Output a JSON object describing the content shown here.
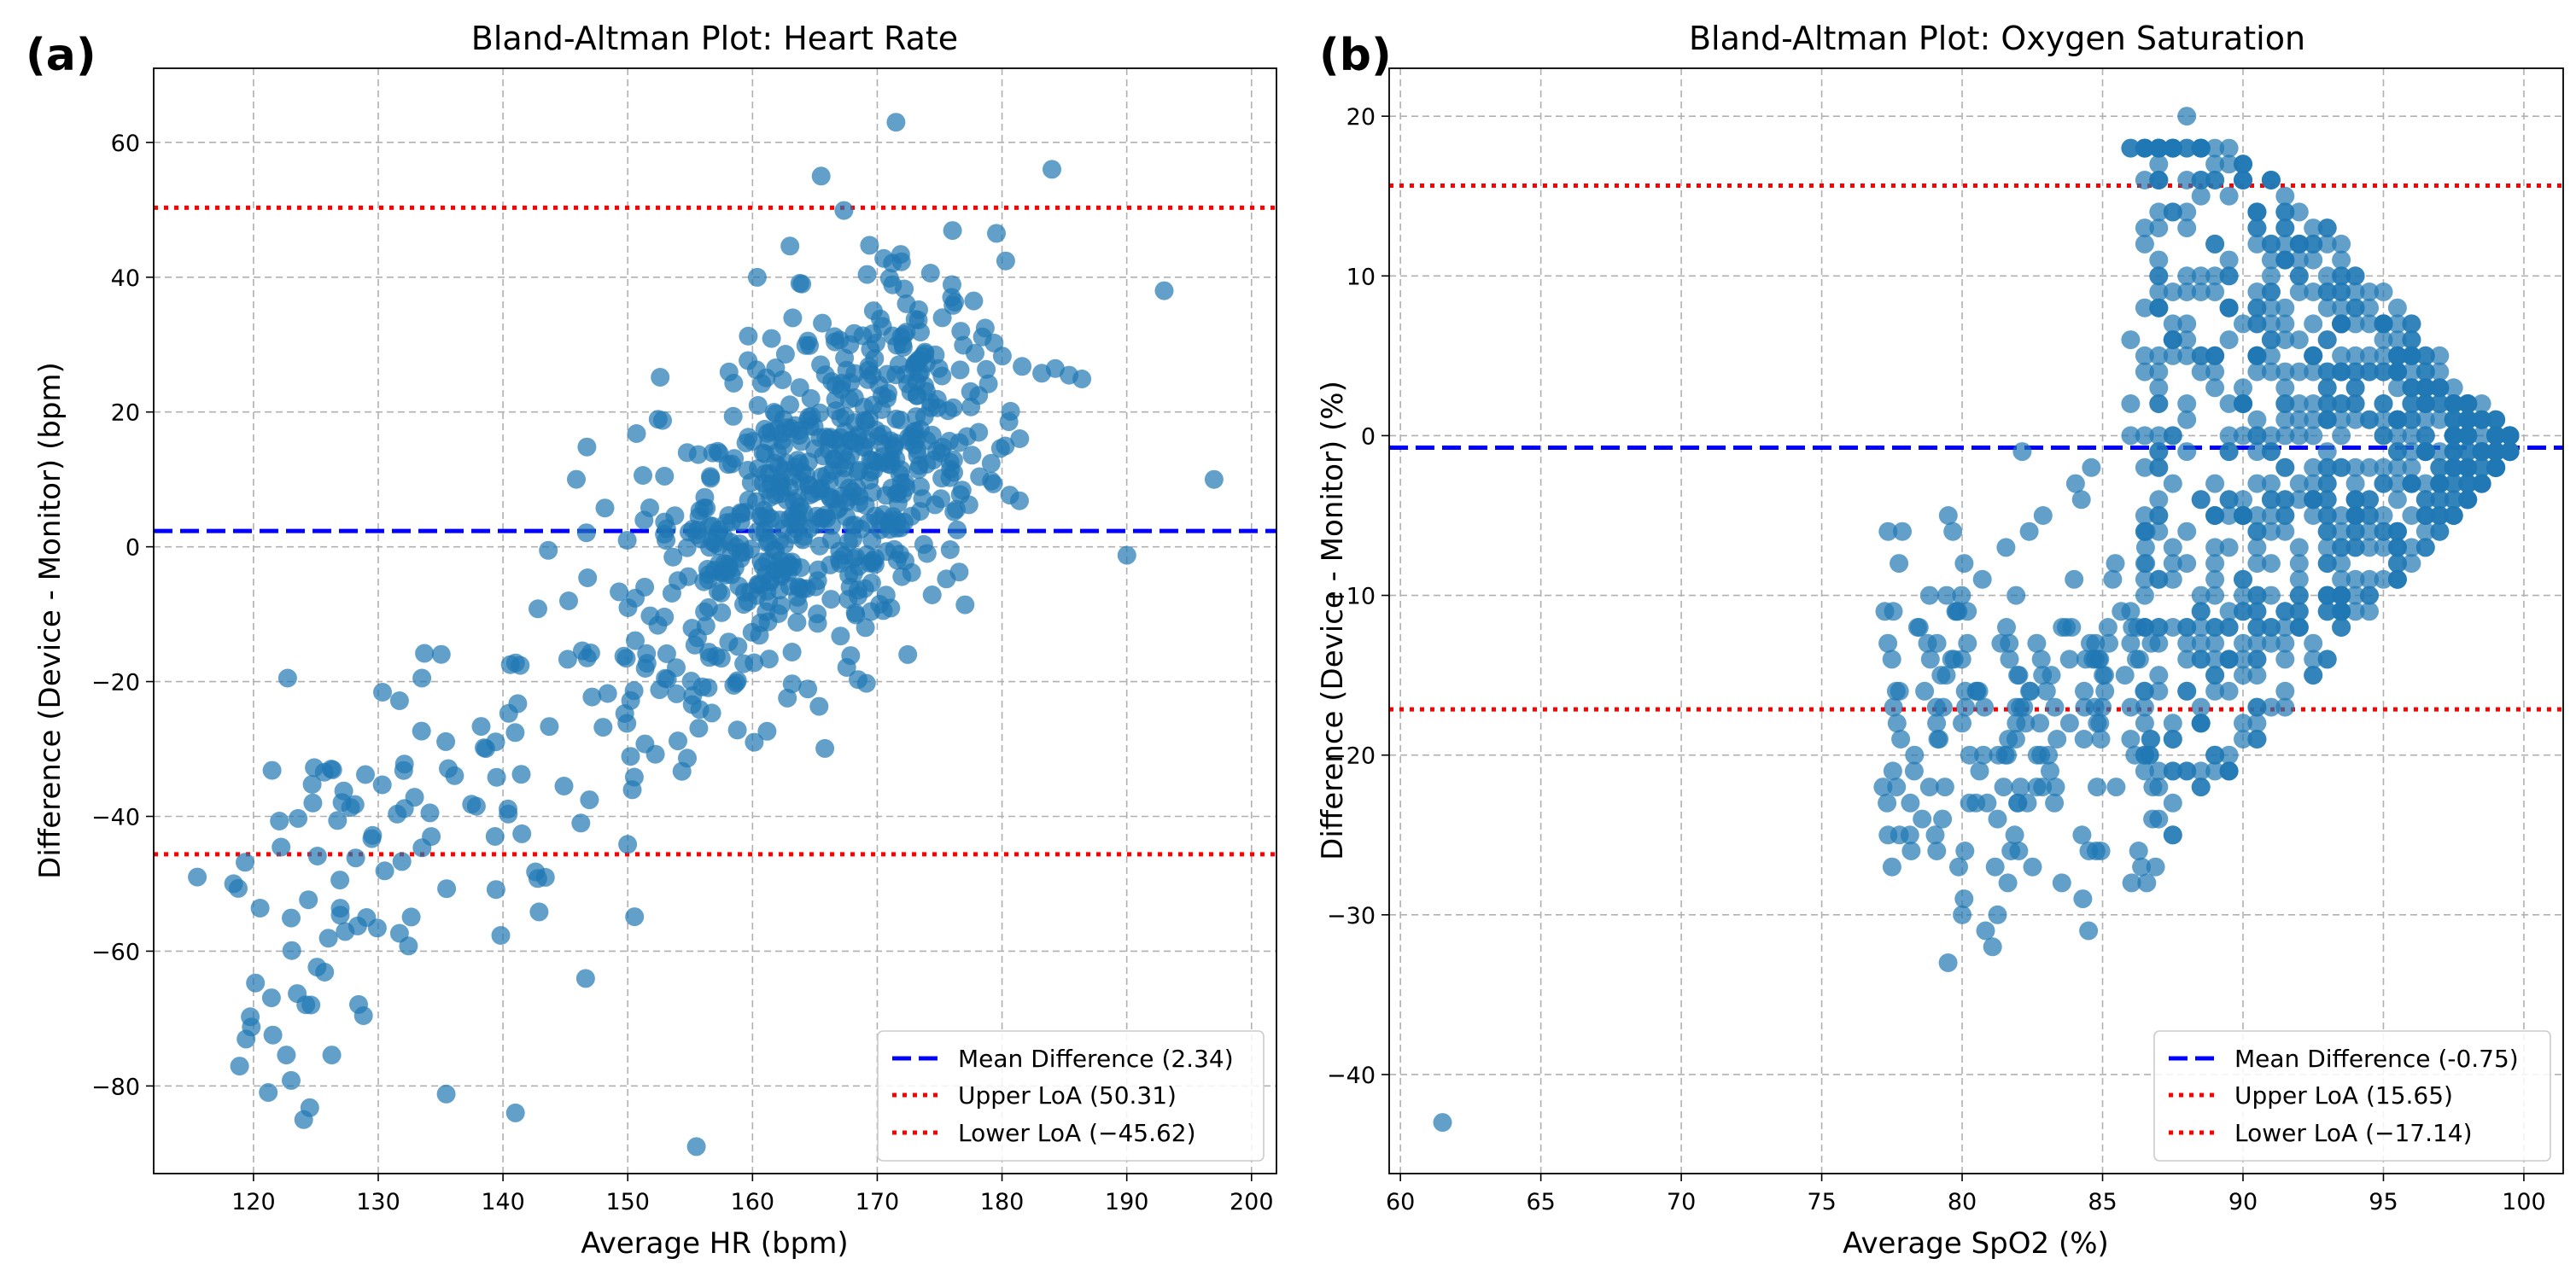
{
  "chart_data": [
    {
      "type": "scatter",
      "panel_label": "(a)",
      "title": "Bland-Altman Plot: Heart Rate",
      "xlabel": "Average HR (bpm)",
      "ylabel": "Difference (Device - Monitor) (bpm)",
      "xlim": [
        112,
        202
      ],
      "ylim": [
        -93,
        71
      ],
      "xticks": [
        120,
        130,
        140,
        150,
        160,
        170,
        180,
        190,
        200
      ],
      "yticks": [
        -80,
        -60,
        -40,
        -20,
        0,
        20,
        40,
        60
      ],
      "ytick_labels": [
        "−80",
        "−60",
        "−40",
        "−20",
        "0",
        "20",
        "40",
        "60"
      ],
      "grid": true,
      "point_color": "#1f77b4",
      "point_count": 800,
      "reference_lines": [
        {
          "name": "Mean Difference",
          "value": 2.34,
          "label": "Mean Difference (2.34)",
          "style": "dashed",
          "color": "#0000ff"
        },
        {
          "name": "Upper LoA",
          "value": 50.31,
          "label": "Upper LoA (50.31)",
          "style": "dotted",
          "color": "#ff0000"
        },
        {
          "name": "Lower LoA",
          "value": -45.62,
          "label": "Lower LoA (−45.62)",
          "style": "dotted",
          "color": "#ff0000"
        }
      ],
      "legend_position": "lower-right",
      "notable_points": [
        [
          115.5,
          -49
        ],
        [
          171.5,
          63
        ],
        [
          165.5,
          55
        ],
        [
          184,
          56
        ],
        [
          155.5,
          -89
        ],
        [
          141,
          -84
        ],
        [
          197,
          10
        ],
        [
          193,
          38
        ]
      ]
    },
    {
      "type": "scatter",
      "panel_label": "(b)",
      "title": "Bland-Altman Plot: Oxygen Saturation",
      "xlabel": "Average SpO2 (%)",
      "ylabel": "Difference (Device - Monitor) (%)",
      "xlim": [
        59.6,
        101.4
      ],
      "ylim": [
        -46.2,
        23
      ],
      "xticks": [
        60,
        65,
        70,
        75,
        80,
        85,
        90,
        95,
        100
      ],
      "yticks": [
        -40,
        -30,
        -20,
        -10,
        0,
        10,
        20
      ],
      "ytick_labels": [
        "−40",
        "−30",
        "−20",
        "−10",
        "0",
        "10",
        "20"
      ],
      "grid": true,
      "point_color": "#1f77b4",
      "point_count": 1000,
      "reference_lines": [
        {
          "name": "Mean Difference",
          "value": -0.75,
          "label": "Mean Difference (-0.75)",
          "style": "dashed",
          "color": "#0000ff"
        },
        {
          "name": "Upper LoA",
          "value": 15.65,
          "label": "Upper LoA (15.65)",
          "style": "dotted",
          "color": "#ff0000"
        },
        {
          "name": "Lower LoA",
          "value": -17.14,
          "label": "Lower LoA (−17.14)",
          "style": "dotted",
          "color": "#ff0000"
        }
      ],
      "legend_position": "lower-right",
      "notable_points": [
        [
          61.5,
          -43
        ],
        [
          88,
          20
        ],
        [
          89.5,
          17
        ],
        [
          79.5,
          -33
        ],
        [
          80,
          -30
        ],
        [
          84.5,
          -31
        ],
        [
          99.5,
          -1
        ]
      ]
    }
  ]
}
